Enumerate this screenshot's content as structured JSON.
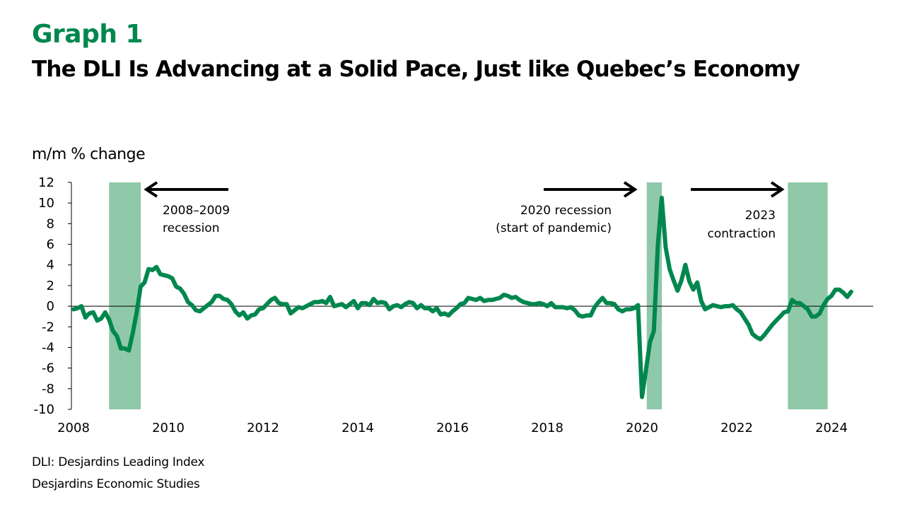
{
  "header": {
    "graph_label": "Graph 1",
    "title": "The DLI Is Advancing at a Solid Pace, Just like Quebec’s Economy"
  },
  "footer": {
    "note": "DLI: Desjardins Leading Index",
    "source": "Desjardins Economic Studies"
  },
  "colors": {
    "brand_green": "#00874E",
    "line": "#00874E",
    "shade": "#8FC9A9",
    "text": "#000000"
  },
  "chart_data": {
    "type": "line",
    "title": "The DLI Is Advancing at a Solid Pace, Just like Quebec’s Economy",
    "xlabel": "",
    "ylabel": "m/m % change",
    "ylim": [
      -10,
      12
    ],
    "yticks": [
      12,
      10,
      8,
      6,
      4,
      2,
      0,
      -2,
      -4,
      -6,
      -8,
      -10
    ],
    "xlim": [
      2008.0,
      2025.0
    ],
    "xticks": [
      2008,
      2010,
      2012,
      2014,
      2016,
      2018,
      2020,
      2022,
      2024
    ],
    "grid": false,
    "legend": "none",
    "shaded_periods": [
      {
        "name": "2008–2009 recession",
        "start": 2008.75,
        "end": 2009.42
      },
      {
        "name": "2020 recession (start of pandemic)",
        "start": 2020.1,
        "end": 2020.42
      },
      {
        "name": "2023 contraction",
        "start": 2023.08,
        "end": 2023.92
      }
    ],
    "annotations": [
      {
        "lines": [
          "2008–2009",
          "recession"
        ],
        "arrow": "left",
        "align": "left"
      },
      {
        "lines": [
          "2020 recession",
          "(start of pandemic)"
        ],
        "arrow": "right",
        "align": "right"
      },
      {
        "lines": [
          "2023",
          "contraction"
        ],
        "arrow": "right",
        "align": "right"
      }
    ],
    "series": [
      {
        "name": "DLI",
        "start": 2008.0,
        "step_months": 1,
        "values": [
          -0.3,
          -0.2,
          0.0,
          -1.1,
          -0.7,
          -0.6,
          -1.4,
          -1.2,
          -0.6,
          -1.3,
          -2.4,
          -2.9,
          -4.1,
          -4.1,
          -4.3,
          -2.6,
          -0.6,
          1.9,
          2.3,
          3.6,
          3.5,
          3.8,
          3.1,
          3.0,
          2.9,
          2.7,
          1.9,
          1.7,
          1.2,
          0.4,
          0.1,
          -0.4,
          -0.5,
          -0.2,
          0.1,
          0.4,
          1.0,
          1.0,
          0.7,
          0.6,
          0.2,
          -0.5,
          -0.9,
          -0.6,
          -1.2,
          -0.9,
          -0.8,
          -0.3,
          -0.2,
          0.2,
          0.6,
          0.8,
          0.3,
          0.2,
          0.2,
          -0.7,
          -0.4,
          -0.1,
          -0.2,
          0.0,
          0.2,
          0.4,
          0.4,
          0.5,
          0.3,
          0.9,
          0.0,
          0.1,
          0.2,
          -0.1,
          0.2,
          0.5,
          -0.2,
          0.3,
          0.3,
          0.1,
          0.7,
          0.3,
          0.4,
          0.3,
          -0.3,
          0.0,
          0.1,
          -0.1,
          0.2,
          0.4,
          0.3,
          -0.2,
          0.1,
          -0.2,
          -0.2,
          -0.5,
          -0.2,
          -0.8,
          -0.7,
          -0.9,
          -0.5,
          -0.2,
          0.2,
          0.3,
          0.8,
          0.7,
          0.6,
          0.8,
          0.5,
          0.6,
          0.6,
          0.7,
          0.8,
          1.1,
          1.0,
          0.8,
          0.9,
          0.6,
          0.4,
          0.3,
          0.2,
          0.2,
          0.3,
          0.2,
          0.0,
          0.3,
          -0.1,
          -0.1,
          -0.1,
          -0.2,
          -0.1,
          -0.4,
          -0.9,
          -1.0,
          -0.9,
          -0.9,
          -0.1,
          0.4,
          0.8,
          0.3,
          0.3,
          0.2,
          -0.3,
          -0.5,
          -0.3,
          -0.3,
          -0.2,
          0.1,
          -8.8,
          -6.2,
          -3.5,
          -2.4,
          5.8,
          10.5,
          5.7,
          3.6,
          2.5,
          1.5,
          2.5,
          4.0,
          2.4,
          1.6,
          2.3,
          0.5,
          -0.3,
          -0.1,
          0.1,
          0.0,
          -0.1,
          0.0,
          0.0,
          0.1,
          -0.3,
          -0.6,
          -1.2,
          -1.8,
          -2.7,
          -3.0,
          -3.2,
          -2.8,
          -2.3,
          -1.8,
          -1.4,
          -1.0,
          -0.6,
          -0.5,
          0.6,
          0.3,
          0.3,
          0.0,
          -0.3,
          -1.0,
          -1.0,
          -0.7,
          0.1,
          0.7,
          1.0,
          1.6,
          1.6,
          1.3,
          0.9,
          1.4
        ]
      }
    ]
  }
}
